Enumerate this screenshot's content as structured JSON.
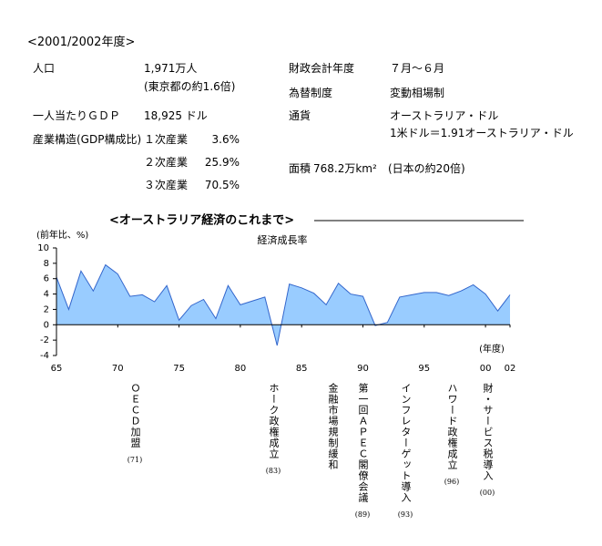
{
  "header": {
    "title": "<2001/2002年度>"
  },
  "info": [
    {
      "label": "人口",
      "value": "1,971万人",
      "note": "(東京都の約1.6倍)"
    },
    {
      "label": "財政会計年度",
      "value": "７月～６月"
    },
    {
      "label": "為替制度",
      "value": "変動相場制"
    },
    {
      "label": "一人当たりＧＤＰ",
      "value": "18,925 ドル"
    },
    {
      "label": "通貨",
      "value": "オーストラリア・ドル",
      "note": "1米ドル＝1.91オーストラリア・ドル"
    },
    {
      "label": "産業構造(GDP構成比)",
      "breakdown": [
        {
          "sector": "１次産業",
          "share": "3.6%"
        },
        {
          "sector": "２次産業",
          "share": "25.9%"
        },
        {
          "sector": "３次産業",
          "share": "70.5%"
        }
      ]
    },
    {
      "label": "面積",
      "value": "768.2万km²",
      "note": "(日本の約20倍)"
    }
  ],
  "chart_data": {
    "type": "area",
    "title": "<オーストラリア経済のこれまで>",
    "y_label": "(前年比、%)",
    "x_label": "(年度)",
    "x": [
      1965,
      1966,
      1967,
      1968,
      1969,
      1970,
      1971,
      1972,
      1973,
      1974,
      1975,
      1976,
      1977,
      1978,
      1979,
      1980,
      1981,
      1982,
      1983,
      1984,
      1985,
      1986,
      1987,
      1988,
      1989,
      1990,
      1991,
      1992,
      1993,
      1994,
      1995,
      1996,
      1997,
      1998,
      1999,
      2000,
      2001,
      2002
    ],
    "series": [
      {
        "name": "経済成長率",
        "color": "#99ccff",
        "line_color": "#3366cc",
        "values": [
          6.2,
          2.0,
          7.0,
          4.4,
          7.8,
          6.6,
          3.7,
          3.9,
          3.0,
          5.1,
          0.6,
          2.5,
          3.3,
          0.8,
          5.1,
          2.6,
          3.1,
          3.6,
          -2.7,
          5.3,
          4.8,
          4.1,
          2.6,
          5.4,
          4.0,
          3.7,
          -0.1,
          0.3,
          3.6,
          3.9,
          4.2,
          4.2,
          3.8,
          4.4,
          5.2,
          4.0,
          1.8,
          3.9
        ]
      }
    ],
    "xlim": [
      1965,
      2002
    ],
    "xticks": [
      {
        "value": 1965,
        "label": "65"
      },
      {
        "value": 1970,
        "label": "70"
      },
      {
        "value": 1975,
        "label": "75"
      },
      {
        "value": 1980,
        "label": "80"
      },
      {
        "value": 1985,
        "label": "85"
      },
      {
        "value": 1990,
        "label": "90"
      },
      {
        "value": 1995,
        "label": "95"
      },
      {
        "value": 2000,
        "label": "00"
      },
      {
        "value": 2002,
        "label": "02"
      }
    ],
    "ylim": [
      -4,
      10
    ],
    "yticks": [
      -4,
      -2,
      0,
      2,
      4,
      6,
      8,
      10
    ],
    "grid": false,
    "annotations": [
      {
        "text": "ＯＥＣＤ加盟",
        "label": "(71)"
      },
      {
        "text": "ホーク政権成立",
        "label": "(83)"
      },
      {
        "text": "金融市場規制緩和"
      },
      {
        "text": "第一回ＡＰＥＣ閣僚会議",
        "label": "(89)"
      },
      {
        "text": "インフレターゲット導入",
        "label": "(93)"
      },
      {
        "text": "ハワード政権成立",
        "label": "(96)"
      },
      {
        "text": "財・サービス税導入",
        "label": "(00)"
      }
    ]
  }
}
